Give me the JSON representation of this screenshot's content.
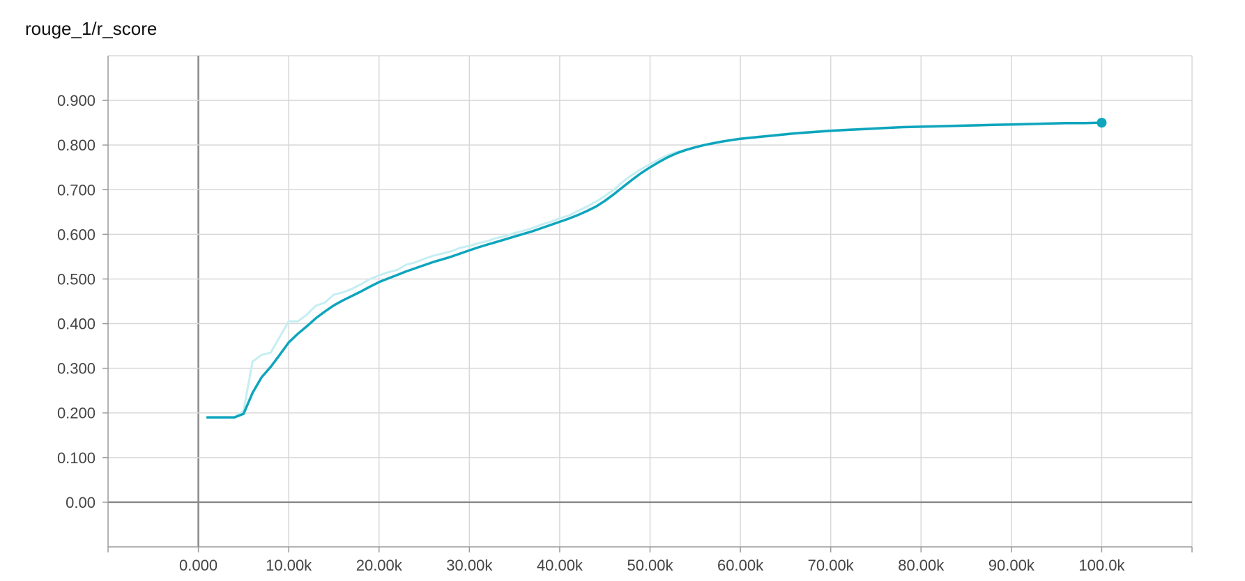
{
  "chart_data": {
    "type": "line",
    "title": "rouge_1/r_score",
    "xlabel": "",
    "ylabel": "",
    "xlim": [
      -10000,
      110000
    ],
    "ylim": [
      -0.1,
      1.0
    ],
    "grid": true,
    "x_ticks": [
      {
        "value": 0,
        "label": "0.000"
      },
      {
        "value": 10000,
        "label": "10.00k"
      },
      {
        "value": 20000,
        "label": "20.00k"
      },
      {
        "value": 30000,
        "label": "30.00k"
      },
      {
        "value": 40000,
        "label": "40.00k"
      },
      {
        "value": 50000,
        "label": "50.00k"
      },
      {
        "value": 60000,
        "label": "60.00k"
      },
      {
        "value": 70000,
        "label": "70.00k"
      },
      {
        "value": 80000,
        "label": "80.00k"
      },
      {
        "value": 90000,
        "label": "90.00k"
      },
      {
        "value": 100000,
        "label": "100.0k"
      }
    ],
    "y_ticks": [
      {
        "value": 0.0,
        "label": "0.00"
      },
      {
        "value": 0.1,
        "label": "0.100"
      },
      {
        "value": 0.2,
        "label": "0.200"
      },
      {
        "value": 0.3,
        "label": "0.300"
      },
      {
        "value": 0.4,
        "label": "0.400"
      },
      {
        "value": 0.5,
        "label": "0.500"
      },
      {
        "value": 0.6,
        "label": "0.600"
      },
      {
        "value": 0.7,
        "label": "0.700"
      },
      {
        "value": 0.8,
        "label": "0.800"
      },
      {
        "value": 0.9,
        "label": "0.900"
      }
    ],
    "series": [
      {
        "role": "raw",
        "color": "#c6eef2",
        "x": [
          1000,
          2000,
          3000,
          4000,
          5000,
          6000,
          7000,
          8000,
          9000,
          10000,
          11000,
          12000,
          13000,
          14000,
          15000,
          16000,
          17000,
          18000,
          19000,
          20000,
          21000,
          22000,
          23000,
          24000,
          25000,
          26000,
          27000,
          28000,
          29000,
          30000,
          31000,
          32000,
          33000,
          34000,
          35000,
          36000,
          37000,
          38000,
          39000,
          40000,
          41000,
          42000,
          43000,
          44000,
          45000,
          46000,
          47000,
          48000,
          49000,
          50000,
          51000,
          52000,
          53000,
          54000,
          55000,
          56000,
          57000,
          58000,
          59000,
          60000,
          62000,
          64000,
          66000,
          68000,
          70000,
          72000,
          74000,
          76000,
          78000,
          80000,
          82000,
          84000,
          86000,
          88000,
          90000,
          92000,
          94000,
          96000,
          98000,
          100000
        ],
        "y": [
          0.19,
          0.19,
          0.19,
          0.19,
          0.205,
          0.315,
          0.33,
          0.335,
          0.37,
          0.405,
          0.405,
          0.42,
          0.44,
          0.447,
          0.465,
          0.47,
          0.478,
          0.488,
          0.5,
          0.508,
          0.515,
          0.52,
          0.532,
          0.537,
          0.545,
          0.552,
          0.557,
          0.562,
          0.57,
          0.574,
          0.58,
          0.585,
          0.592,
          0.596,
          0.603,
          0.608,
          0.614,
          0.622,
          0.628,
          0.636,
          0.642,
          0.652,
          0.662,
          0.673,
          0.686,
          0.7,
          0.718,
          0.733,
          0.746,
          0.757,
          0.768,
          0.778,
          0.785,
          0.79,
          0.795,
          0.8,
          0.804,
          0.808,
          0.811,
          0.815,
          0.819,
          0.823,
          0.827,
          0.83,
          0.833,
          0.835,
          0.837,
          0.839,
          0.84,
          0.842,
          0.843,
          0.844,
          0.845,
          0.846,
          0.847,
          0.848,
          0.848,
          0.849,
          0.849,
          0.85
        ]
      },
      {
        "role": "smoothed",
        "color": "#0ea5bd",
        "x": [
          1000,
          2000,
          3000,
          4000,
          5000,
          6000,
          7000,
          8000,
          9000,
          10000,
          11000,
          12000,
          13000,
          14000,
          15000,
          16000,
          17000,
          18000,
          19000,
          20000,
          21000,
          22000,
          23000,
          24000,
          25000,
          26000,
          27000,
          28000,
          29000,
          30000,
          31000,
          32000,
          33000,
          34000,
          35000,
          36000,
          37000,
          38000,
          39000,
          40000,
          41000,
          42000,
          43000,
          44000,
          45000,
          46000,
          47000,
          48000,
          49000,
          50000,
          51000,
          52000,
          53000,
          54000,
          55000,
          56000,
          57000,
          58000,
          59000,
          60000,
          62000,
          64000,
          66000,
          68000,
          70000,
          72000,
          74000,
          76000,
          78000,
          80000,
          82000,
          84000,
          86000,
          88000,
          90000,
          92000,
          94000,
          96000,
          98000,
          100000
        ],
        "y": [
          0.19,
          0.19,
          0.19,
          0.19,
          0.198,
          0.245,
          0.28,
          0.303,
          0.33,
          0.358,
          0.377,
          0.394,
          0.412,
          0.427,
          0.441,
          0.452,
          0.462,
          0.472,
          0.483,
          0.493,
          0.501,
          0.509,
          0.517,
          0.524,
          0.531,
          0.538,
          0.544,
          0.55,
          0.557,
          0.564,
          0.571,
          0.577,
          0.583,
          0.589,
          0.595,
          0.601,
          0.607,
          0.614,
          0.621,
          0.628,
          0.635,
          0.643,
          0.652,
          0.662,
          0.675,
          0.69,
          0.706,
          0.722,
          0.737,
          0.75,
          0.762,
          0.773,
          0.782,
          0.789,
          0.795,
          0.8,
          0.804,
          0.808,
          0.811,
          0.814,
          0.818,
          0.822,
          0.826,
          0.829,
          0.832,
          0.834,
          0.836,
          0.838,
          0.84,
          0.841,
          0.842,
          0.843,
          0.844,
          0.845,
          0.846,
          0.847,
          0.848,
          0.849,
          0.849,
          0.85
        ]
      }
    ],
    "last_point": {
      "x": 100000,
      "y": 0.85
    }
  }
}
